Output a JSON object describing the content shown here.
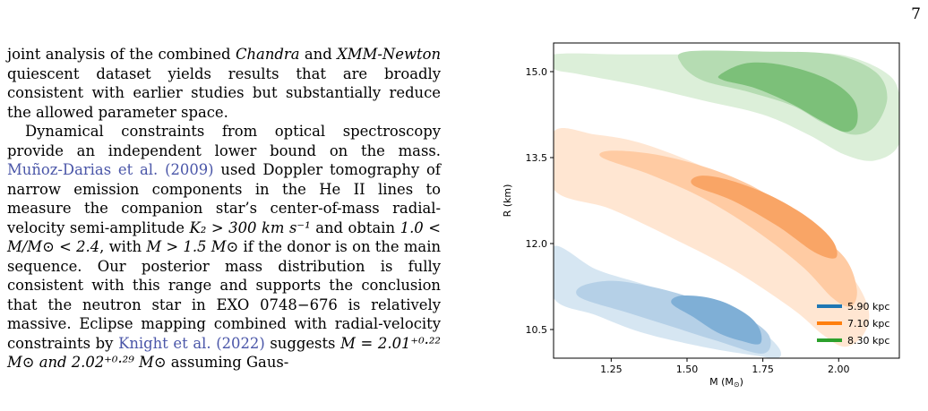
{
  "page": {
    "number": "7"
  },
  "text": {
    "p1": {
      "a": "joint analysis of the combined ",
      "chandra": "Chandra",
      "b": " and ",
      "xmm": "XMM-Newton",
      "c": " quiescent dataset yields results that are broadly consistent with earlier studies but substantially reduce the allowed parameter space."
    },
    "p2": {
      "a": "Dynamical constraints from optical spectroscopy provide an independent lower bound on the mass. ",
      "cite1": "Muñoz-Darias et al. (2009)",
      "b": " used Doppler tomography of narrow emission components in the He II lines to measure the companion star’s center-of-mass radial-velocity semi-amplitude ",
      "k2": "K₂ > 300 km s⁻¹",
      "c": " and obtain ",
      "massrange": "1.0 < M/M⊙ < 2.4",
      "d": ", with ",
      "mdonor": "M > 1.5 M⊙",
      "e": " if the donor is on the main sequence. Our posterior mass distribution is fully consistent with this range and supports the conclusion that the neutron star in EXO 0748−676 is relatively massive. Eclipse mapping combined with radial-velocity constraints by ",
      "cite2": "Knight et al. (2022)",
      "f": " suggests ",
      "mval": "M = 2.01⁺⁰·²² M⊙ and 2.02⁺⁰·²⁹ M⊙",
      "g": " assuming Gaus-"
    }
  },
  "chart_data": {
    "type": "contour",
    "xlabel": "M (M$_\\odot$)",
    "ylabel": "R (km)",
    "xlim": [
      1.06,
      2.2
    ],
    "ylim": [
      10.0,
      15.5
    ],
    "xticks": [
      "1.25",
      "1.50",
      "1.75",
      "2.00"
    ],
    "xtick_values": [
      1.25,
      1.5,
      1.75,
      2.0
    ],
    "yticks": [
      "10.5",
      "12.0",
      "13.5",
      "15.0"
    ],
    "ytick_values": [
      10.5,
      12.0,
      13.5,
      15.0
    ],
    "legend_position": "bottom-right",
    "series": [
      {
        "name": "5.90 kpc",
        "color": "#1f77b4",
        "fill_levels": [
          "#d6e6f2",
          "#b5d0e7",
          "#7fafd6"
        ],
        "contours": [
          [
            [
              1.06,
              11.05
            ],
            [
              1.2,
              10.75
            ],
            [
              1.35,
              10.45
            ],
            [
              1.55,
              10.2
            ],
            [
              1.72,
              10.05
            ],
            [
              1.8,
              10.0
            ],
            [
              1.8,
              10.2
            ],
            [
              1.72,
              10.55
            ],
            [
              1.55,
              10.95
            ],
            [
              1.35,
              11.3
            ],
            [
              1.2,
              11.55
            ],
            [
              1.06,
              11.95
            ]
          ],
          [
            [
              1.15,
              11.05
            ],
            [
              1.3,
              10.8
            ],
            [
              1.45,
              10.55
            ],
            [
              1.6,
              10.3
            ],
            [
              1.75,
              10.08
            ],
            [
              1.77,
              10.4
            ],
            [
              1.68,
              10.75
            ],
            [
              1.52,
              11.05
            ],
            [
              1.38,
              11.25
            ],
            [
              1.25,
              11.35
            ],
            [
              1.15,
              11.25
            ]
          ],
          [
            [
              1.45,
              10.95
            ],
            [
              1.52,
              10.72
            ],
            [
              1.6,
              10.45
            ],
            [
              1.68,
              10.3
            ],
            [
              1.74,
              10.25
            ],
            [
              1.74,
              10.5
            ],
            [
              1.7,
              10.75
            ],
            [
              1.62,
              10.98
            ],
            [
              1.54,
              11.08
            ],
            [
              1.47,
              11.08
            ]
          ]
        ]
      },
      {
        "name": "7.10 kpc",
        "color": "#ff7f0e",
        "fill_levels": [
          "#ffe6d2",
          "#ffcba3",
          "#f9a566"
        ],
        "contours": [
          [
            [
              1.06,
              12.95
            ],
            [
              1.25,
              12.6
            ],
            [
              1.45,
              12.1
            ],
            [
              1.65,
              11.55
            ],
            [
              1.85,
              10.85
            ],
            [
              1.95,
              10.4
            ],
            [
              2.02,
              10.2
            ],
            [
              2.08,
              10.4
            ],
            [
              2.1,
              10.8
            ],
            [
              2.06,
              11.3
            ],
            [
              1.98,
              11.8
            ],
            [
              1.85,
              12.35
            ],
            [
              1.72,
              12.9
            ],
            [
              1.55,
              13.35
            ],
            [
              1.35,
              13.75
            ],
            [
              1.2,
              13.9
            ],
            [
              1.06,
              13.95
            ]
          ],
          [
            [
              1.22,
              13.5
            ],
            [
              1.38,
              13.2
            ],
            [
              1.55,
              12.8
            ],
            [
              1.72,
              12.25
            ],
            [
              1.88,
              11.6
            ],
            [
              1.98,
              11.05
            ],
            [
              2.04,
              10.9
            ],
            [
              2.06,
              11.2
            ],
            [
              2.02,
              11.75
            ],
            [
              1.9,
              12.3
            ],
            [
              1.75,
              12.9
            ],
            [
              1.58,
              13.3
            ],
            [
              1.4,
              13.55
            ],
            [
              1.25,
              13.62
            ]
          ],
          [
            [
              1.52,
              13.02
            ],
            [
              1.65,
              12.75
            ],
            [
              1.8,
              12.3
            ],
            [
              1.92,
              11.85
            ],
            [
              1.99,
              11.75
            ],
            [
              1.98,
              12.05
            ],
            [
              1.9,
              12.45
            ],
            [
              1.77,
              12.85
            ],
            [
              1.63,
              13.12
            ],
            [
              1.54,
              13.18
            ]
          ]
        ]
      },
      {
        "name": "8.30 kpc",
        "color": "#2ca02c",
        "fill_levels": [
          "#dcefd9",
          "#b5dcb2",
          "#7cc079"
        ],
        "contours": [
          [
            [
              1.06,
              15.3
            ],
            [
              1.3,
              15.3
            ],
            [
              1.55,
              15.3
            ],
            [
              1.8,
              15.3
            ],
            [
              2.0,
              15.3
            ],
            [
              2.15,
              15.0
            ],
            [
              2.2,
              14.6
            ],
            [
              2.2,
              13.75
            ],
            [
              2.12,
              13.45
            ],
            [
              2.02,
              13.55
            ],
            [
              1.9,
              13.9
            ],
            [
              1.75,
              14.25
            ],
            [
              1.55,
              14.5
            ],
            [
              1.35,
              14.75
            ],
            [
              1.15,
              14.95
            ],
            [
              1.06,
              15.05
            ]
          ],
          [
            [
              1.5,
              15.35
            ],
            [
              1.75,
              15.35
            ],
            [
              1.98,
              15.3
            ],
            [
              2.12,
              15.0
            ],
            [
              2.16,
              14.55
            ],
            [
              2.12,
              14.05
            ],
            [
              2.05,
              13.9
            ],
            [
              1.95,
              14.1
            ],
            [
              1.85,
              14.4
            ],
            [
              1.7,
              14.65
            ],
            [
              1.55,
              14.85
            ],
            [
              1.48,
              15.15
            ]
          ],
          [
            [
              1.61,
              14.95
            ],
            [
              1.7,
              15.15
            ],
            [
              1.83,
              15.1
            ],
            [
              1.97,
              14.85
            ],
            [
              2.05,
              14.5
            ],
            [
              2.06,
              14.1
            ],
            [
              2.02,
              13.95
            ],
            [
              1.94,
              14.15
            ],
            [
              1.84,
              14.45
            ],
            [
              1.72,
              14.72
            ],
            [
              1.62,
              14.85
            ]
          ]
        ]
      }
    ]
  }
}
